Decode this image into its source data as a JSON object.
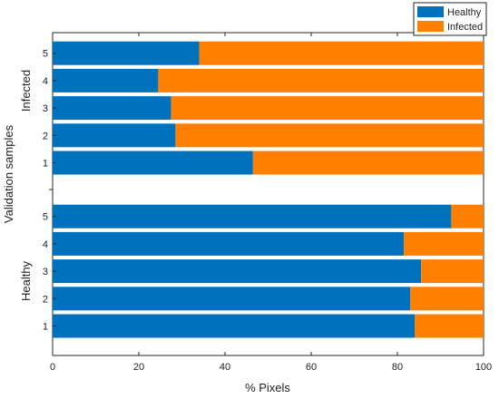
{
  "chart_data": {
    "type": "bar",
    "orientation": "horizontal",
    "stacked": true,
    "xlabel": "% Pixels",
    "ylabel": "Validation samples",
    "xlim": [
      0,
      100
    ],
    "xticks": [
      "0",
      "20",
      "40",
      "60",
      "80",
      "100"
    ],
    "legend_position": "top-right",
    "colors": {
      "Healthy": "#0072BD",
      "Infected": "#FF8000"
    },
    "groups": [
      {
        "label": "Infected",
        "categories": [
          "1",
          "2",
          "3",
          "4",
          "5"
        ],
        "series": [
          {
            "name": "Healthy",
            "values": [
              46.5,
              28.5,
              27.5,
              24.5,
              34
            ]
          },
          {
            "name": "Infected",
            "values": [
              53.5,
              71.5,
              72.5,
              75.5,
              66
            ]
          }
        ]
      },
      {
        "label": "Healthy",
        "categories": [
          "1",
          "2",
          "3",
          "4",
          "5"
        ],
        "series": [
          {
            "name": "Healthy",
            "values": [
              84,
              83,
              85.5,
              81.5,
              92.5
            ]
          },
          {
            "name": "Infected",
            "values": [
              16,
              17,
              14.5,
              18.5,
              7.5
            ]
          }
        ]
      }
    ]
  }
}
